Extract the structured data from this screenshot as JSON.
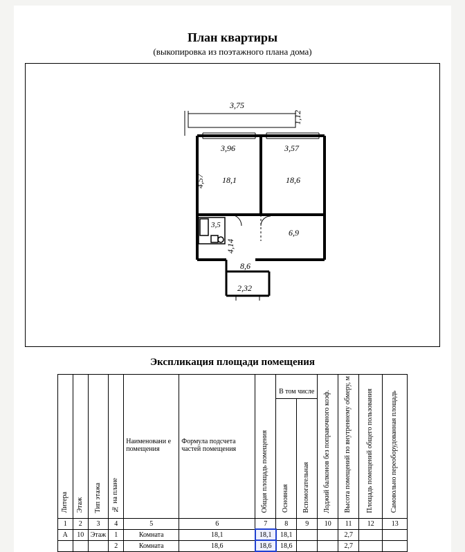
{
  "title": "План квартиры",
  "subtitle": "(выкопировка из поэтажного плана дома)",
  "expl_title": "Экспликация площади помещения",
  "headers": {
    "c1": "Литера",
    "c2": "Этаж",
    "c3": "Тип этажа",
    "c4": "№ на плане",
    "c5": "Наименовани\nе помещения",
    "c6": "Формула подсчета\nчастей помещения",
    "c7": "Общая площадь помещения",
    "grp": "В том числе",
    "c8": "Основная",
    "c9": "Вспомогательная",
    "c10": "Лоджий балконов без\nпоправочного коэф.",
    "c11": "Высота помещений по\nвнутреннему обмеру, м",
    "c12": "Площадь помещений общего\nпользования",
    "c13": "Самовольно\nпереоборудованная площадь"
  },
  "index_row": [
    "1",
    "2",
    "3",
    "4",
    "5",
    "6",
    "7",
    "8",
    "9",
    "10",
    "11",
    "12",
    "13"
  ],
  "rows": [
    {
      "lit": "А",
      "et": "10",
      "tip": "Этаж",
      "np": "1",
      "name": "Комната",
      "form": "18,1",
      "obsh": "18,1",
      "osn": "18,1",
      "vsp": "",
      "lod": "",
      "vys": "2,7",
      "plo": "",
      "sam": "",
      "hl": "obsh"
    },
    {
      "lit": "",
      "et": "",
      "tip": "",
      "np": "2",
      "name": "Комната",
      "form": "18,6",
      "obsh": "18,6",
      "osn": "18,6",
      "vsp": "",
      "lod": "",
      "vys": "2,7",
      "plo": "",
      "sam": "",
      "hl": "obsh"
    }
  ],
  "plan": {
    "stroke": "#000000",
    "font_family": "Times New Roman, serif",
    "font_size": 12,
    "font_style": "italic",
    "dims": {
      "top_375": "3,75",
      "top_112": "1,12",
      "r1_396": "3,96",
      "r2_357": "3,57",
      "r1_457": "4,57",
      "r1_181": "18,1",
      "r2_186": "18,6",
      "bath_35": "3,5",
      "h_414": "4,14",
      "hall_69": "6,9",
      "kit_86": "8,6",
      "kit_232": "2,32"
    }
  }
}
